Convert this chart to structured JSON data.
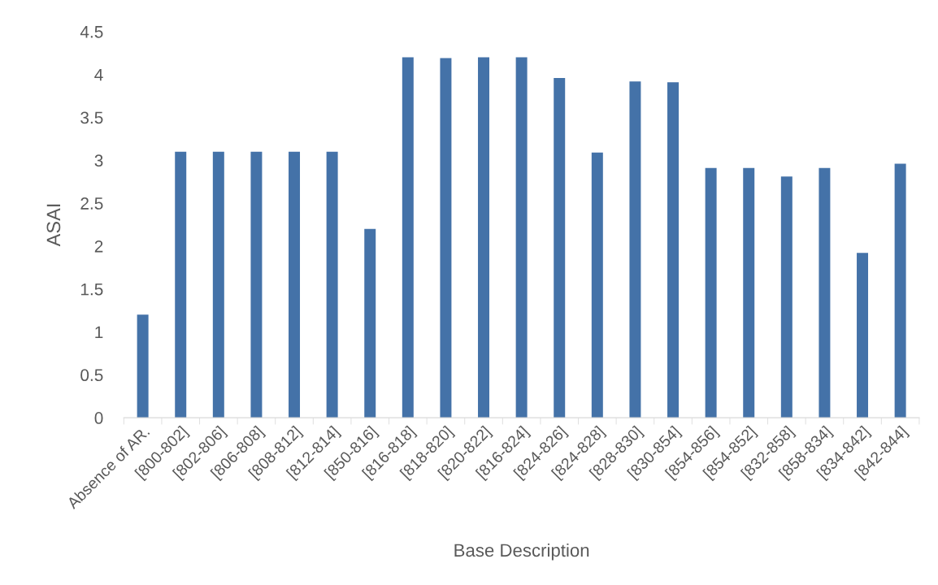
{
  "chart_data": {
    "type": "bar",
    "xlabel": "Base Description",
    "ylabel": "ASAI",
    "categories": [
      "Absence of AR.",
      "[800-802]",
      "[802-806]",
      "[806-808]",
      "[808-812]",
      "[812-814]",
      "[850-816]",
      "[816-818]",
      "[818-820]",
      "[820-822]",
      "[816-824]",
      "[824-826]",
      "[824-828]",
      "[828-830]",
      "[830-854]",
      "[854-856]",
      "[854-852]",
      "[832-858]",
      "[858-834]",
      "[834-842]",
      "[842-844]"
    ],
    "values": [
      1.2,
      3.1,
      3.1,
      3.1,
      3.1,
      3.1,
      2.2,
      4.2,
      4.19,
      4.2,
      4.2,
      3.96,
      3.09,
      3.92,
      3.91,
      2.91,
      2.91,
      2.81,
      2.91,
      1.92,
      2.96
    ],
    "color": "#4472a8",
    "ylim": [
      0,
      4.5
    ],
    "yticks": [
      0,
      0.5,
      1,
      1.5,
      2,
      2.5,
      3,
      3.5,
      4,
      4.5
    ],
    "grid": false,
    "legend": false
  }
}
